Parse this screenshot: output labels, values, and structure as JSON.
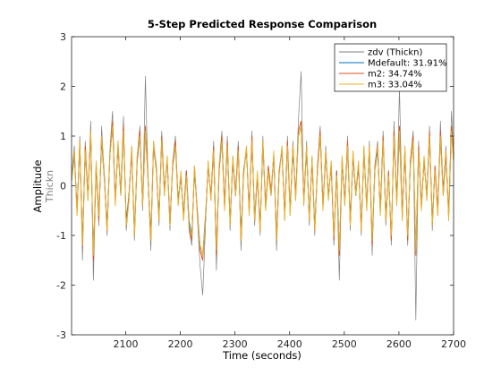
{
  "chart_data": {
    "type": "line",
    "title": "5-Step Predicted Response Comparison",
    "xlabel": "Time (seconds)",
    "ylabel": "Amplitude",
    "ysublabel": "Thickn",
    "xlim": [
      2001,
      2700
    ],
    "ylim": [
      -3,
      3
    ],
    "xticks": [
      2100,
      2200,
      2300,
      2400,
      2500,
      2600,
      2700
    ],
    "yticks": [
      -3,
      -2,
      -1,
      0,
      1,
      2,
      3
    ],
    "grid": false,
    "legend_position": "top-right",
    "x": [
      2001,
      2006,
      2011,
      2016,
      2021,
      2026,
      2031,
      2036,
      2041,
      2046,
      2051,
      2056,
      2061,
      2066,
      2071,
      2076,
      2081,
      2086,
      2091,
      2096,
      2101,
      2106,
      2111,
      2116,
      2121,
      2126,
      2131,
      2136,
      2141,
      2146,
      2151,
      2156,
      2161,
      2166,
      2171,
      2176,
      2181,
      2186,
      2191,
      2196,
      2201,
      2206,
      2211,
      2216,
      2221,
      2226,
      2231,
      2236,
      2241,
      2246,
      2251,
      2256,
      2261,
      2266,
      2271,
      2276,
      2281,
      2286,
      2291,
      2296,
      2301,
      2306,
      2311,
      2316,
      2321,
      2326,
      2331,
      2336,
      2341,
      2346,
      2351,
      2356,
      2361,
      2366,
      2371,
      2376,
      2381,
      2386,
      2391,
      2396,
      2401,
      2406,
      2411,
      2416,
      2421,
      2426,
      2431,
      2436,
      2441,
      2446,
      2451,
      2456,
      2461,
      2466,
      2471,
      2476,
      2481,
      2486,
      2491,
      2496,
      2501,
      2506,
      2511,
      2516,
      2521,
      2526,
      2531,
      2536,
      2541,
      2546,
      2551,
      2556,
      2561,
      2566,
      2571,
      2576,
      2581,
      2586,
      2591,
      2596,
      2601,
      2606,
      2611,
      2616,
      2621,
      2626,
      2631,
      2636,
      2641,
      2646,
      2651,
      2656,
      2661,
      2666,
      2671,
      2676,
      2681,
      2686,
      2691,
      2696,
      2700
    ],
    "series": [
      {
        "name": "zdv (Thickn)",
        "color": "#808080",
        "values": [
          0.2,
          0.8,
          -0.6,
          1.0,
          -1.5,
          0.9,
          -0.3,
          1.3,
          -1.9,
          0.5,
          -0.8,
          1.2,
          0.1,
          -1.0,
          0.7,
          1.5,
          -0.4,
          0.9,
          -0.2,
          1.4,
          -0.9,
          -0.3,
          0.8,
          -1.1,
          0.6,
          1.2,
          -0.5,
          2.2,
          0.1,
          -1.3,
          0.9,
          0.4,
          -0.8,
          1.1,
          -0.2,
          0.6,
          -0.9,
          0.5,
          1.0,
          -0.4,
          0.2,
          -0.7,
          0.3,
          -0.9,
          -1.2,
          0.4,
          -0.6,
          -1.6,
          -2.2,
          -0.8,
          0.5,
          -0.3,
          0.9,
          -1.7,
          0.4,
          1.1,
          -0.5,
          1.0,
          -0.9,
          0.6,
          -0.2,
          0.9,
          -1.3,
          0.3,
          0.8,
          -0.6,
          1.1,
          -0.8,
          0.2,
          -1.0,
          1.0,
          -0.5,
          0.4,
          -0.2,
          0.7,
          -1.3,
          0.3,
          0.8,
          -0.7,
          1.0,
          -0.6,
          0.9,
          -0.3,
          1.3,
          2.3,
          -0.4,
          0.9,
          -0.8,
          0.6,
          -1.0,
          0.4,
          1.2,
          -0.5,
          0.8,
          -0.3,
          0.5,
          -1.2,
          0.3,
          -1.9,
          0.6,
          -0.4,
          1.0,
          -0.9,
          0.7,
          -0.2,
          0.5,
          -1.0,
          0.8,
          -0.5,
          0.9,
          -1.4,
          0.4,
          0.9,
          -0.6,
          1.1,
          -0.8,
          0.3,
          -1.2,
          1.3,
          -0.4,
          2.0,
          -0.7,
          0.8,
          -1.2,
          0.5,
          1.1,
          -2.7,
          0.9,
          -0.5,
          0.6,
          -0.3,
          1.2,
          -0.9,
          0.4,
          -0.6,
          1.3,
          -0.2,
          0.8,
          -0.7,
          1.5,
          0.6
        ]
      },
      {
        "name": "Mdefault: 31.91%",
        "color": "#0072BD",
        "values": [
          0.1,
          0.6,
          -0.5,
          0.8,
          -1.1,
          0.7,
          -0.2,
          1.0,
          -1.4,
          0.4,
          -0.6,
          0.9,
          0.1,
          -0.8,
          0.6,
          1.2,
          -0.3,
          0.8,
          -0.2,
          1.1,
          -0.7,
          -0.2,
          0.7,
          -0.9,
          0.5,
          1.0,
          -0.4,
          1.1,
          0.1,
          -1.0,
          0.8,
          0.3,
          -0.6,
          0.9,
          -0.1,
          0.5,
          -0.7,
          0.4,
          0.8,
          -0.3,
          0.2,
          -0.6,
          0.3,
          -0.7,
          -1.0,
          0.3,
          -0.5,
          -1.2,
          -1.4,
          -0.6,
          0.4,
          -0.2,
          0.7,
          -1.3,
          0.3,
          0.9,
          -0.4,
          0.8,
          -0.7,
          0.5,
          -0.2,
          0.7,
          -1.0,
          0.3,
          0.7,
          -0.5,
          0.9,
          -0.6,
          0.2,
          -0.8,
          0.8,
          -0.4,
          0.3,
          -0.2,
          0.6,
          -1.0,
          0.3,
          0.7,
          -0.6,
          0.8,
          -0.5,
          0.7,
          -0.2,
          1.0,
          1.2,
          -0.3,
          0.7,
          -0.6,
          0.5,
          -0.8,
          0.3,
          1.0,
          -0.4,
          0.6,
          -0.2,
          0.4,
          -1.0,
          0.3,
          -1.3,
          0.5,
          -0.3,
          0.8,
          -0.7,
          0.6,
          -0.2,
          0.4,
          -0.8,
          0.7,
          -0.4,
          0.7,
          -1.1,
          0.3,
          0.7,
          -0.5,
          0.9,
          -0.6,
          0.2,
          -1.0,
          1.0,
          -0.3,
          1.1,
          -0.6,
          0.7,
          -1.0,
          0.4,
          0.9,
          -1.3,
          0.7,
          -0.4,
          0.5,
          -0.2,
          1.0,
          -0.7,
          0.3,
          -0.5,
          1.0,
          -0.2,
          0.6,
          -0.6,
          1.1,
          0.5
        ]
      },
      {
        "name": "m2: 34.74%",
        "color": "#D95319",
        "values": [
          0.2,
          0.7,
          -0.5,
          0.9,
          -1.2,
          0.8,
          -0.2,
          1.1,
          -1.5,
          0.4,
          -0.7,
          1.0,
          0.2,
          -0.9,
          0.6,
          1.3,
          -0.3,
          0.8,
          -0.1,
          1.2,
          -0.8,
          -0.2,
          0.7,
          -1.0,
          0.5,
          1.1,
          -0.4,
          1.2,
          0.2,
          -1.1,
          0.8,
          0.4,
          -0.7,
          1.0,
          -0.1,
          0.5,
          -0.8,
          0.4,
          0.9,
          -0.3,
          0.2,
          -0.6,
          0.3,
          -0.8,
          -1.1,
          0.4,
          -0.5,
          -1.3,
          -1.5,
          -0.7,
          0.4,
          -0.2,
          0.8,
          -1.4,
          0.3,
          1.0,
          -0.4,
          0.9,
          -0.8,
          0.5,
          -0.1,
          0.8,
          -1.1,
          0.3,
          0.7,
          -0.5,
          1.0,
          -0.7,
          0.2,
          -0.9,
          0.9,
          -0.4,
          0.4,
          -0.1,
          0.6,
          -1.1,
          0.3,
          0.7,
          -0.6,
          0.9,
          -0.5,
          0.8,
          -0.2,
          1.1,
          1.3,
          -0.3,
          0.8,
          -0.7,
          0.5,
          -0.9,
          0.4,
          1.1,
          -0.4,
          0.7,
          -0.2,
          0.4,
          -1.1,
          0.3,
          -1.4,
          0.5,
          -0.3,
          0.9,
          -0.8,
          0.6,
          -0.1,
          0.4,
          -0.9,
          0.7,
          -0.4,
          0.8,
          -1.2,
          0.4,
          0.8,
          -0.5,
          1.0,
          -0.7,
          0.3,
          -1.1,
          1.1,
          -0.3,
          1.2,
          -0.6,
          0.7,
          -1.1,
          0.5,
          1.0,
          -1.4,
          0.8,
          -0.4,
          0.5,
          -0.2,
          1.1,
          -0.8,
          0.4,
          -0.5,
          1.1,
          -0.1,
          0.7,
          -0.6,
          1.2,
          0.6
        ]
      },
      {
        "name": "m3: 33.04%",
        "color": "#EDB120",
        "values": [
          0.1,
          0.7,
          -0.6,
          0.9,
          -1.2,
          0.7,
          -0.3,
          1.1,
          -1.4,
          0.5,
          -0.6,
          1.0,
          0.1,
          -0.9,
          0.6,
          1.2,
          -0.4,
          0.9,
          -0.2,
          1.1,
          -0.8,
          -0.3,
          0.8,
          -1.0,
          0.6,
          1.0,
          -0.4,
          1.1,
          0.1,
          -1.1,
          0.9,
          0.3,
          -0.7,
          0.9,
          -0.2,
          0.6,
          -0.8,
          0.5,
          0.8,
          -0.4,
          0.3,
          -0.7,
          0.2,
          -0.8,
          -1.0,
          0.4,
          -0.6,
          -1.2,
          -1.4,
          -0.7,
          0.5,
          -0.3,
          0.7,
          -1.3,
          0.4,
          0.9,
          -0.5,
          0.8,
          -0.8,
          0.6,
          -0.2,
          0.7,
          -1.1,
          0.2,
          0.8,
          -0.6,
          0.9,
          -0.7,
          0.3,
          -0.9,
          0.9,
          -0.5,
          0.3,
          -0.2,
          0.7,
          -1.1,
          0.2,
          0.8,
          -0.7,
          0.8,
          -0.6,
          0.8,
          -0.3,
          1.0,
          1.2,
          -0.4,
          0.8,
          -0.7,
          0.6,
          -0.9,
          0.3,
          1.0,
          -0.5,
          0.7,
          -0.3,
          0.5,
          -1.0,
          0.2,
          -1.3,
          0.6,
          -0.4,
          0.8,
          -0.8,
          0.7,
          -0.2,
          0.5,
          -0.9,
          0.8,
          -0.5,
          0.8,
          -1.1,
          0.3,
          0.8,
          -0.6,
          0.9,
          -0.7,
          0.2,
          -1.0,
          1.0,
          -0.4,
          1.1,
          -0.7,
          0.8,
          -1.0,
          0.4,
          0.9,
          -1.3,
          0.7,
          -0.5,
          0.6,
          -0.3,
          1.0,
          -0.8,
          0.3,
          -0.6,
          1.0,
          -0.2,
          0.7,
          -0.7,
          1.1,
          0.5
        ]
      }
    ]
  }
}
